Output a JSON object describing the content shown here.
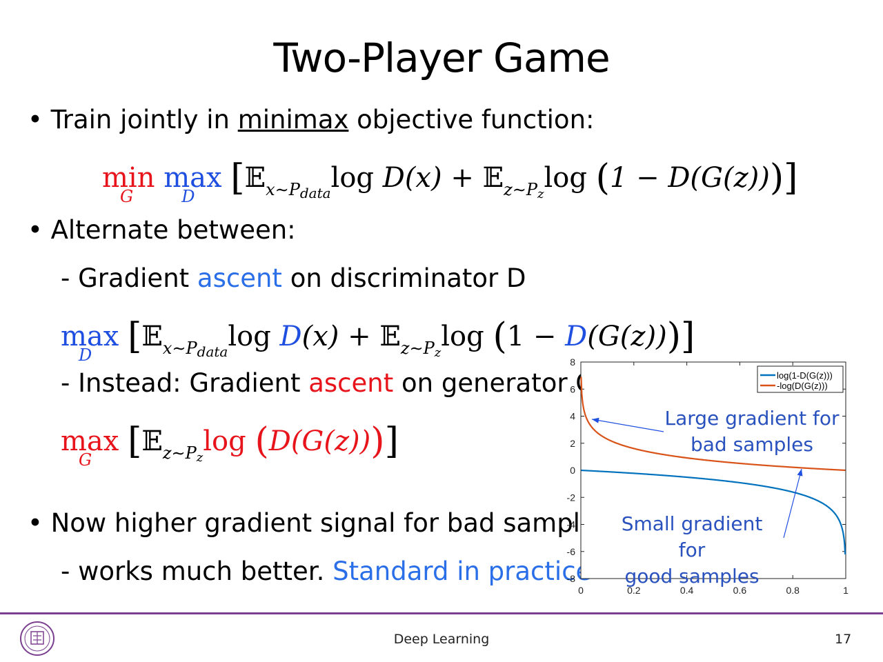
{
  "title": "Two-Player Game",
  "bullet1": {
    "prefix": "Train jointly in ",
    "underlined": "minimax",
    "suffix": " objective function:"
  },
  "eq1": {
    "min": "min",
    "min_sub": "G",
    "max": "max",
    "max_sub": "D",
    "E1": "𝔼",
    "E1_sub": "x∼P",
    "E1_sub2": "data",
    "log1": "log",
    "D1": "D",
    "x": "(x)",
    "plus": "+",
    "E2": "𝔼",
    "E2_sub": "z∼P",
    "E2_sub2": "z",
    "log2": "log",
    "term2": "1 − D(G(z))"
  },
  "bullet2": "Alternate between:",
  "sub1": {
    "prefix": "- Gradient ",
    "highlight": "ascent",
    "suffix": " on discriminator D"
  },
  "eq2": {
    "max": "max",
    "max_sub": "D",
    "E1": "𝔼",
    "E1_sub": "x∼P",
    "E1_sub2": "data",
    "log1": "log",
    "D1": "D",
    "x": "(x)",
    "plus": "+",
    "E2": "𝔼",
    "E2_sub": "z∼P",
    "E2_sub2": "z",
    "log2": "log",
    "one_minus": "1 − ",
    "D2": "D",
    "gz": "(G(z))"
  },
  "sub2": {
    "prefix": "- Instead: Gradient ",
    "highlight": "ascent",
    "suffix": " on generator G"
  },
  "eq3": {
    "max": "max",
    "max_sub": "G",
    "E": "𝔼",
    "E_sub": "z∼P",
    "E_sub2": "z",
    "log": "log",
    "term": "D(G(z))"
  },
  "bullet3": "Now higher gradient signal for bad samples",
  "sub3": {
    "prefix": "- works much better. ",
    "highlight": "Standard in practice"
  },
  "chart_data": {
    "type": "line",
    "x_ticks": [
      "0",
      "0.2",
      "0.4",
      "0.6",
      "0.8",
      "1"
    ],
    "y_ticks": [
      "8",
      "6",
      "4",
      "2",
      "0",
      "-2",
      "-4",
      "-6",
      "-8"
    ],
    "xlim": [
      0,
      1
    ],
    "ylim": [
      -8,
      8
    ],
    "legend_position": "top-right",
    "series": [
      {
        "name": "log(1-D(G(z)))",
        "color": "#0072bd",
        "function": "log(1-x)"
      },
      {
        "name": "-log(D(G(z)))",
        "color": "#d95319",
        "function": "-log(x)"
      }
    ],
    "annotations": [
      {
        "line1": "Large gradient for",
        "line2": "bad samples"
      },
      {
        "line1": "Small gradient for",
        "line2": "good samples"
      }
    ]
  },
  "footer": {
    "text": "Deep Learning",
    "page": "17"
  }
}
